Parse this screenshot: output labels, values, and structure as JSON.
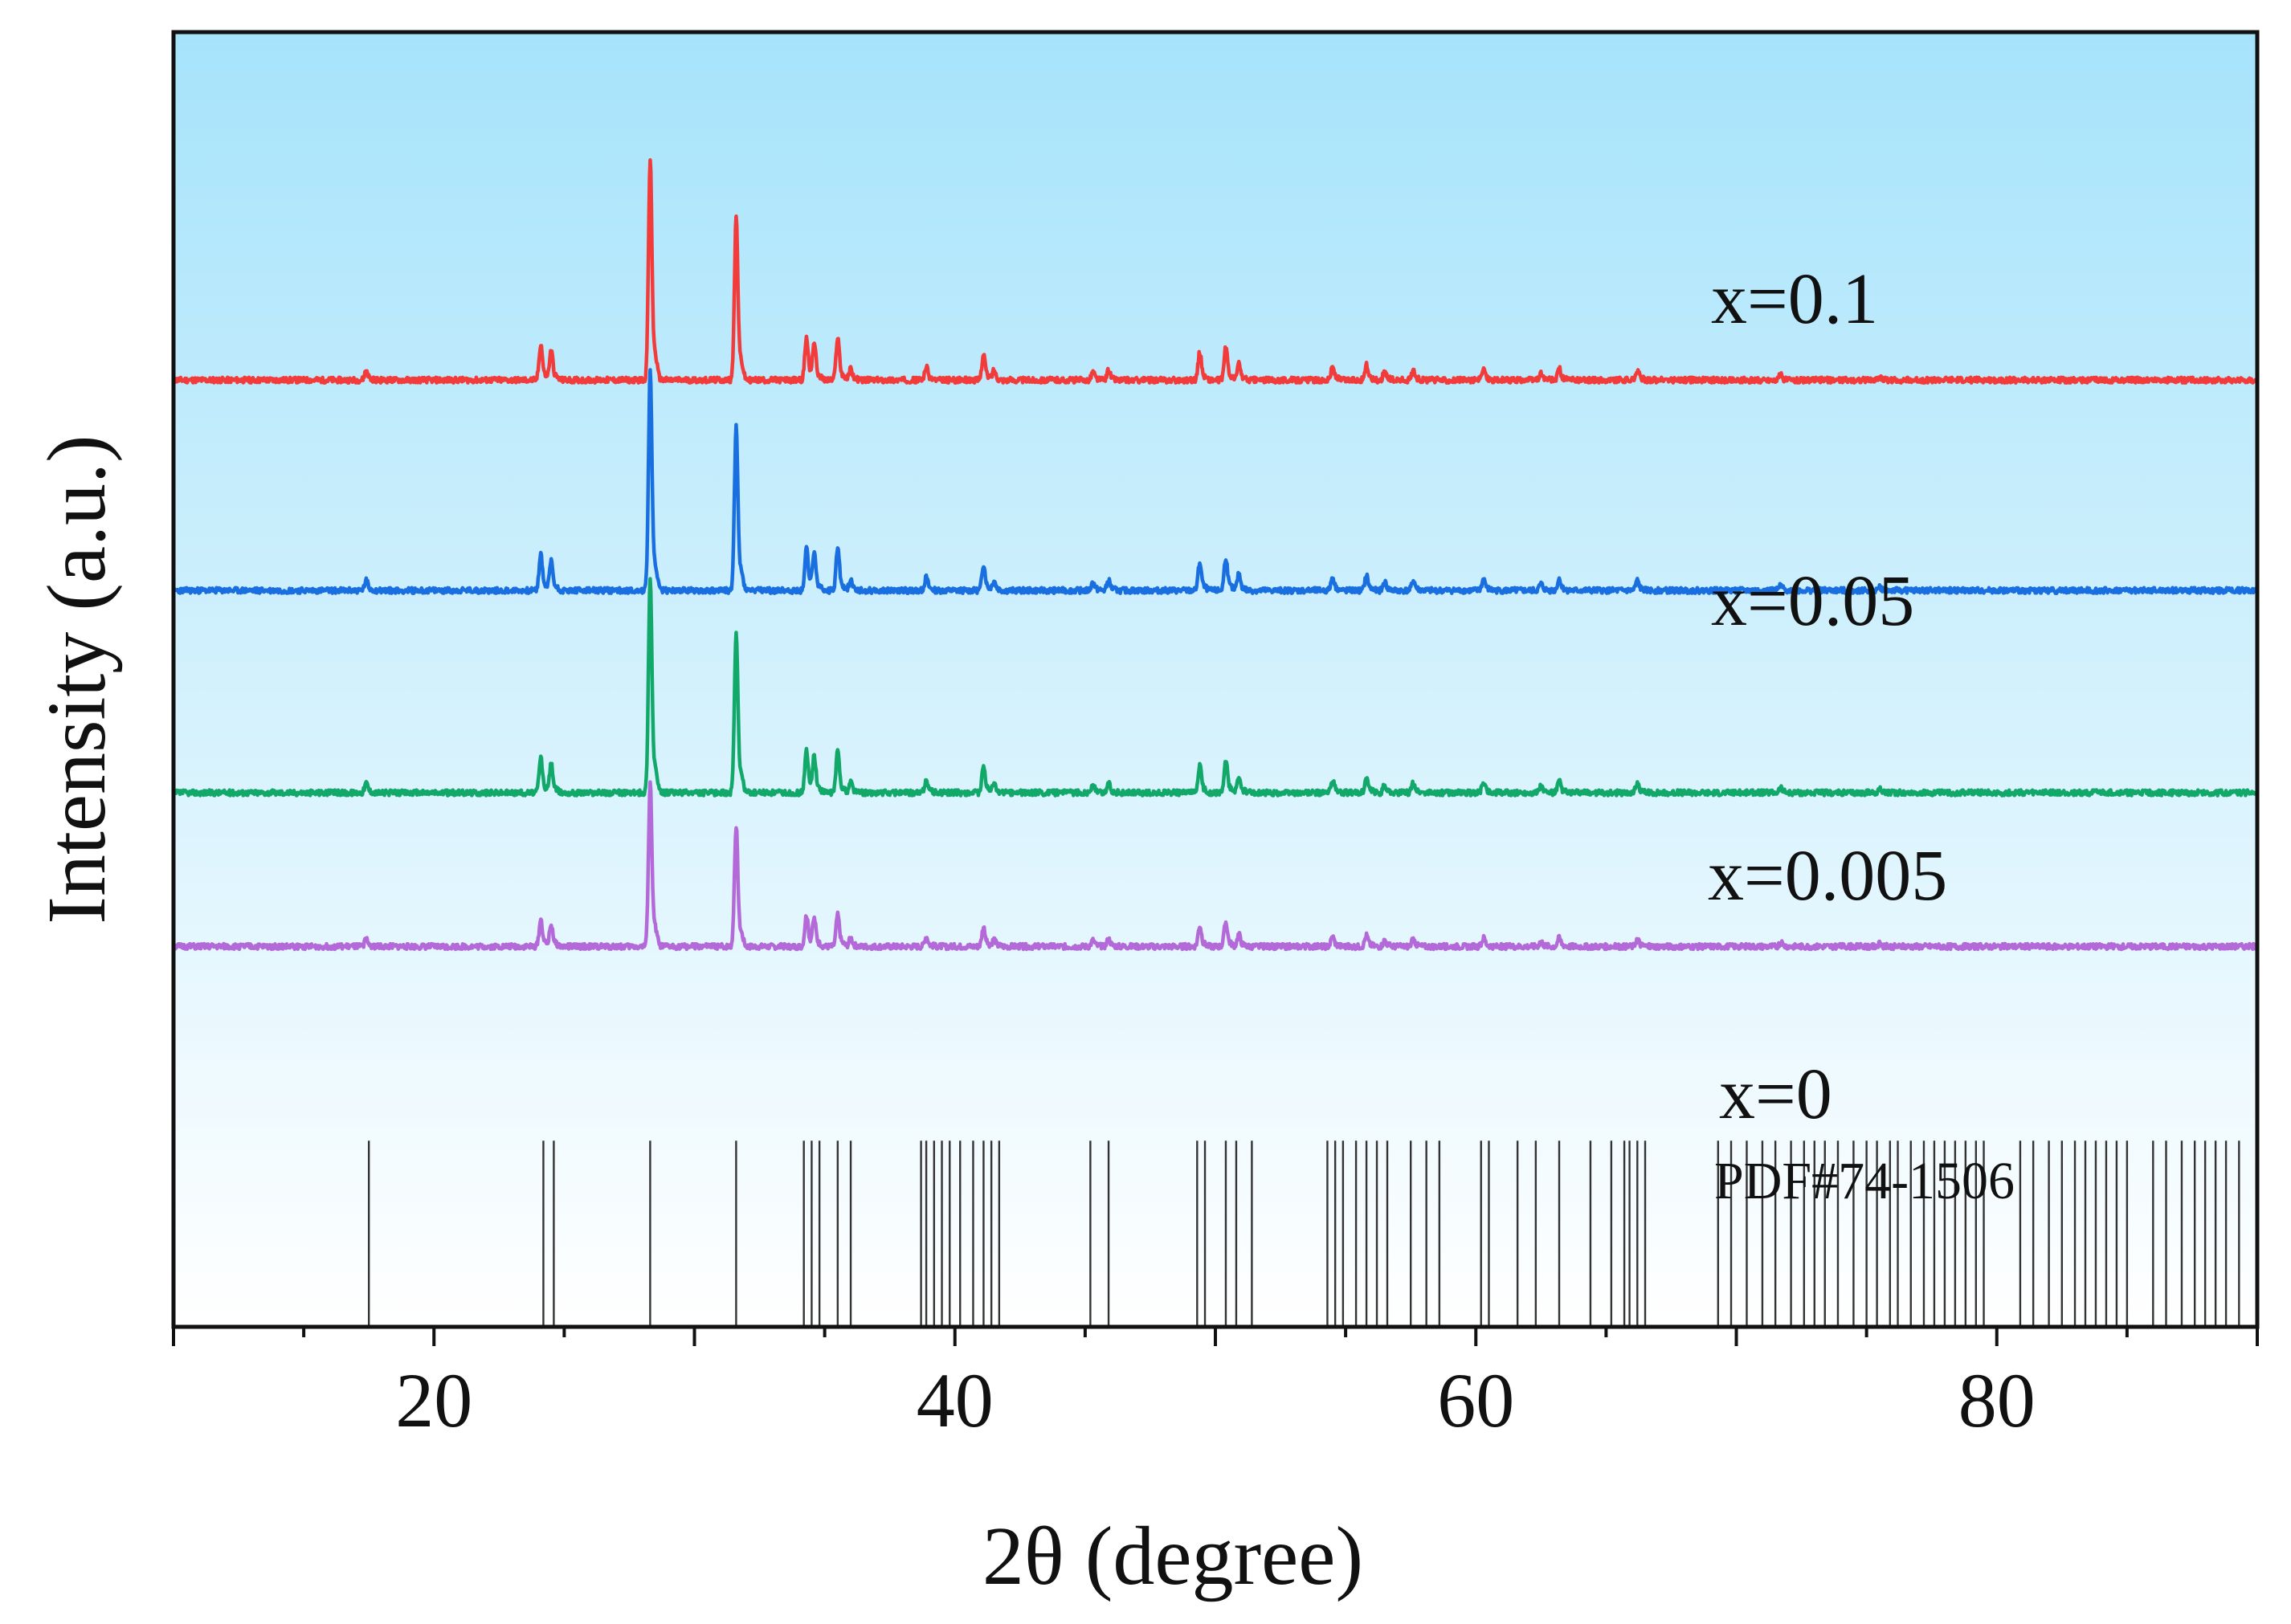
{
  "chart_data": {
    "type": "line",
    "title": "",
    "xlabel": "2θ (degree)",
    "ylabel": "Intensity (a.u.)",
    "xlim": [
      10,
      90
    ],
    "xticks": [
      20,
      40,
      60,
      80
    ],
    "xtick_labels": [
      "20",
      "40",
      "60",
      "80"
    ],
    "grid": false,
    "background": {
      "top": "#a6e3fb",
      "bottom": "#ffffff"
    },
    "series": [
      {
        "name": "x=0.1",
        "color": "#f23c3c",
        "baseline": 5.85,
        "scale": 1.0,
        "noise_seed": 11
      },
      {
        "name": "x=0.05",
        "color": "#1a6fe0",
        "baseline": 4.55,
        "scale": 1.0,
        "noise_seed": 23
      },
      {
        "name": "x=0.005",
        "color": "#12a86a",
        "baseline": 3.3,
        "scale": 0.98,
        "noise_seed": 37
      },
      {
        "name": "x=0",
        "color": "#b36ad8",
        "baseline": 2.35,
        "scale": 0.74,
        "noise_seed": 51
      }
    ],
    "peaks": [
      {
        "x": 17.4,
        "h": 0.06
      },
      {
        "x": 24.1,
        "h": 0.22
      },
      {
        "x": 24.5,
        "h": 0.18
      },
      {
        "x": 28.3,
        "h": 1.35
      },
      {
        "x": 31.6,
        "h": 1.0
      },
      {
        "x": 34.3,
        "h": 0.26
      },
      {
        "x": 34.6,
        "h": 0.22
      },
      {
        "x": 35.5,
        "h": 0.26
      },
      {
        "x": 36.0,
        "h": 0.07
      },
      {
        "x": 38.9,
        "h": 0.08
      },
      {
        "x": 41.1,
        "h": 0.16
      },
      {
        "x": 41.5,
        "h": 0.06
      },
      {
        "x": 45.3,
        "h": 0.05
      },
      {
        "x": 45.9,
        "h": 0.06
      },
      {
        "x": 49.4,
        "h": 0.17
      },
      {
        "x": 50.4,
        "h": 0.2
      },
      {
        "x": 50.9,
        "h": 0.1
      },
      {
        "x": 54.5,
        "h": 0.08
      },
      {
        "x": 55.8,
        "h": 0.09
      },
      {
        "x": 56.5,
        "h": 0.05
      },
      {
        "x": 57.6,
        "h": 0.06
      },
      {
        "x": 60.3,
        "h": 0.07
      },
      {
        "x": 62.5,
        "h": 0.04
      },
      {
        "x": 63.2,
        "h": 0.07
      },
      {
        "x": 66.2,
        "h": 0.06
      },
      {
        "x": 71.7,
        "h": 0.03
      },
      {
        "x": 75.5,
        "h": 0.02
      }
    ],
    "reference": {
      "label": "PDF#74-1506",
      "color": "#333333",
      "lines": [
        17.5,
        24.2,
        24.6,
        28.3,
        31.6,
        34.2,
        34.5,
        34.8,
        35.5,
        36.0,
        38.7,
        38.9,
        39.2,
        39.5,
        39.8,
        40.2,
        40.7,
        41.1,
        41.4,
        41.7,
        45.2,
        45.9,
        49.3,
        49.6,
        50.4,
        50.8,
        51.4,
        54.3,
        54.6,
        54.9,
        55.4,
        55.8,
        56.2,
        56.6,
        57.5,
        58.1,
        58.6,
        60.2,
        60.5,
        61.6,
        62.3,
        63.2,
        64.4,
        65.2,
        65.7,
        65.9,
        66.2,
        66.5,
        69.3,
        69.8,
        70.4,
        71.0,
        71.5,
        72.1,
        72.6,
        73.0,
        73.4,
        73.9,
        74.5,
        75.0,
        75.4,
        75.9,
        76.2,
        76.7,
        77.2,
        77.6,
        78.0,
        78.4,
        78.8,
        79.2,
        79.5,
        80.9,
        81.4,
        82.0,
        82.5,
        83.0,
        83.4,
        83.8,
        84.2,
        84.6,
        85.0,
        86.0,
        86.5,
        87.1,
        87.6,
        88.0,
        88.4,
        88.8,
        89.3
      ]
    }
  }
}
